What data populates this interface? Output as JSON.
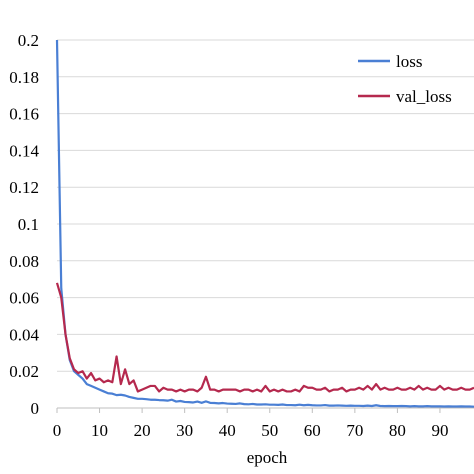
{
  "chart_data": {
    "type": "line",
    "title": "",
    "xlabel": "epoch",
    "ylabel": "",
    "xlim": [
      0,
      98
    ],
    "ylim": [
      0,
      0.2
    ],
    "x_ticks": [
      0,
      10,
      20,
      30,
      40,
      50,
      60,
      70,
      80,
      90
    ],
    "x_tick_labels": [
      "0",
      "10",
      "20",
      "30",
      "40",
      "50",
      "60",
      "70",
      "80",
      "90"
    ],
    "y_ticks": [
      0,
      0.02,
      0.04,
      0.06,
      0.08,
      0.1,
      0.12,
      0.14,
      0.16,
      0.18,
      0.2
    ],
    "y_tick_labels": [
      "0",
      "0.02",
      "0.04",
      "0.06",
      "0.08",
      "0.1",
      "0.12",
      "0.14",
      "0.16",
      "0.18",
      "0.2"
    ],
    "grid": "horizontal",
    "legend": "top-right",
    "series": [
      {
        "name": "loss",
        "color": "#4a7fd4",
        "x": [
          0,
          1,
          2,
          3,
          4,
          5,
          6,
          7,
          8,
          9,
          10,
          11,
          12,
          13,
          14,
          15,
          16,
          17,
          18,
          19,
          20,
          21,
          22,
          23,
          24,
          25,
          26,
          27,
          28,
          29,
          30,
          31,
          32,
          33,
          34,
          35,
          36,
          37,
          38,
          39,
          40,
          41,
          42,
          43,
          44,
          45,
          46,
          47,
          48,
          49,
          50,
          51,
          52,
          53,
          54,
          55,
          56,
          57,
          58,
          59,
          60,
          61,
          62,
          63,
          64,
          65,
          66,
          67,
          68,
          69,
          70,
          71,
          72,
          73,
          74,
          75,
          76,
          77,
          78,
          79,
          80,
          81,
          82,
          83,
          84,
          85,
          86,
          87,
          88,
          89,
          90,
          91,
          92,
          93,
          94,
          95,
          96,
          97,
          98
        ],
        "y": [
          0.2,
          0.065,
          0.04,
          0.026,
          0.02,
          0.018,
          0.016,
          0.013,
          0.012,
          0.011,
          0.01,
          0.009,
          0.008,
          0.0078,
          0.007,
          0.0072,
          0.0068,
          0.006,
          0.0055,
          0.005,
          0.005,
          0.0048,
          0.0045,
          0.0045,
          0.0043,
          0.0042,
          0.004,
          0.0045,
          0.0035,
          0.0038,
          0.0033,
          0.0032,
          0.003,
          0.0035,
          0.0028,
          0.0036,
          0.0028,
          0.0027,
          0.0025,
          0.0027,
          0.0024,
          0.0023,
          0.0022,
          0.0025,
          0.0021,
          0.002,
          0.0022,
          0.0019,
          0.0019,
          0.002,
          0.0018,
          0.0018,
          0.0017,
          0.0019,
          0.0016,
          0.0016,
          0.0015,
          0.0018,
          0.0015,
          0.0017,
          0.0015,
          0.0014,
          0.0014,
          0.0016,
          0.0013,
          0.0013,
          0.0014,
          0.0013,
          0.0012,
          0.0013,
          0.0012,
          0.0012,
          0.0011,
          0.0013,
          0.0011,
          0.0015,
          0.0011,
          0.001,
          0.0011,
          0.001,
          0.001,
          0.0011,
          0.001,
          0.0009,
          0.001,
          0.0009,
          0.0009,
          0.001,
          0.0009,
          0.0009,
          0.0009,
          0.0008,
          0.0009,
          0.0008,
          0.0008,
          0.0009,
          0.0008,
          0.0008,
          0.0007
        ]
      },
      {
        "name": "val_loss",
        "color": "#b5294e",
        "x": [
          0,
          1,
          2,
          3,
          4,
          5,
          6,
          7,
          8,
          9,
          10,
          11,
          12,
          13,
          14,
          15,
          16,
          17,
          18,
          19,
          20,
          21,
          22,
          23,
          24,
          25,
          26,
          27,
          28,
          29,
          30,
          31,
          32,
          33,
          34,
          35,
          36,
          37,
          38,
          39,
          40,
          41,
          42,
          43,
          44,
          45,
          46,
          47,
          48,
          49,
          50,
          51,
          52,
          53,
          54,
          55,
          56,
          57,
          58,
          59,
          60,
          61,
          62,
          63,
          64,
          65,
          66,
          67,
          68,
          69,
          70,
          71,
          72,
          73,
          74,
          75,
          76,
          77,
          78,
          79,
          80,
          81,
          82,
          83,
          84,
          85,
          86,
          87,
          88,
          89,
          90,
          91,
          92,
          93,
          94,
          95,
          96,
          97,
          98
        ],
        "y": [
          0.068,
          0.06,
          0.04,
          0.027,
          0.021,
          0.019,
          0.02,
          0.016,
          0.019,
          0.015,
          0.016,
          0.014,
          0.015,
          0.014,
          0.028,
          0.013,
          0.021,
          0.013,
          0.015,
          0.009,
          0.01,
          0.011,
          0.012,
          0.012,
          0.009,
          0.011,
          0.01,
          0.01,
          0.009,
          0.01,
          0.009,
          0.01,
          0.01,
          0.009,
          0.011,
          0.017,
          0.01,
          0.01,
          0.009,
          0.01,
          0.01,
          0.01,
          0.01,
          0.009,
          0.01,
          0.01,
          0.009,
          0.01,
          0.009,
          0.012,
          0.009,
          0.01,
          0.009,
          0.01,
          0.009,
          0.009,
          0.01,
          0.009,
          0.012,
          0.011,
          0.011,
          0.01,
          0.01,
          0.011,
          0.009,
          0.01,
          0.01,
          0.011,
          0.009,
          0.01,
          0.01,
          0.011,
          0.01,
          0.012,
          0.01,
          0.013,
          0.01,
          0.011,
          0.01,
          0.01,
          0.011,
          0.01,
          0.01,
          0.011,
          0.01,
          0.012,
          0.01,
          0.011,
          0.01,
          0.01,
          0.012,
          0.01,
          0.011,
          0.01,
          0.01,
          0.011,
          0.01,
          0.01,
          0.011
        ]
      }
    ]
  }
}
